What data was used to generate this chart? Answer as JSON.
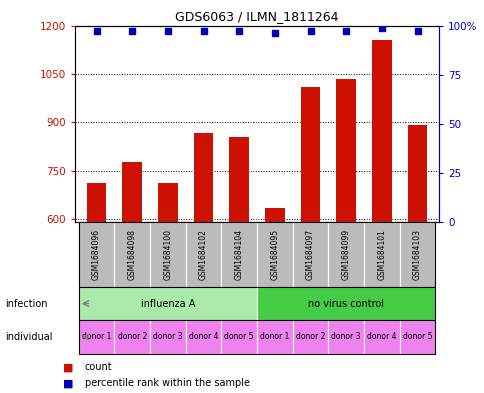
{
  "title": "GDS6063 / ILMN_1811264",
  "samples": [
    "GSM1684096",
    "GSM1684098",
    "GSM1684100",
    "GSM1684102",
    "GSM1684104",
    "GSM1684095",
    "GSM1684097",
    "GSM1684099",
    "GSM1684101",
    "GSM1684103"
  ],
  "counts": [
    710,
    775,
    710,
    865,
    855,
    635,
    1010,
    1035,
    1155,
    890
  ],
  "percentiles": [
    97,
    97,
    97,
    97,
    97,
    96,
    97,
    97,
    99,
    97
  ],
  "ylim_left": [
    590,
    1200
  ],
  "ylim_right": [
    0,
    100
  ],
  "yticks_left": [
    600,
    750,
    900,
    1050,
    1200
  ],
  "yticks_right": [
    0,
    25,
    50,
    75,
    100
  ],
  "infection_groups": [
    {
      "label": "influenza A",
      "start": 0,
      "end": 5,
      "color": "#AAEAAA"
    },
    {
      "label": "no virus control",
      "start": 5,
      "end": 10,
      "color": "#44CC44"
    }
  ],
  "individuals": [
    "donor 1",
    "donor 2",
    "donor 3",
    "donor 4",
    "donor 5",
    "donor 1",
    "donor 2",
    "donor 3",
    "donor 4",
    "donor 5"
  ],
  "individual_color": "#EE82EE",
  "bar_color": "#CC1100",
  "dot_color": "#0000BB",
  "sample_bg_color": "#BBBBBB",
  "left_axis_color": "#CC1100",
  "right_axis_color": "#0000BB",
  "n_samples": 10,
  "legend_items": [
    {
      "color": "#CC1100",
      "label": "count"
    },
    {
      "color": "#0000BB",
      "label": "percentile rank within the sample"
    }
  ]
}
